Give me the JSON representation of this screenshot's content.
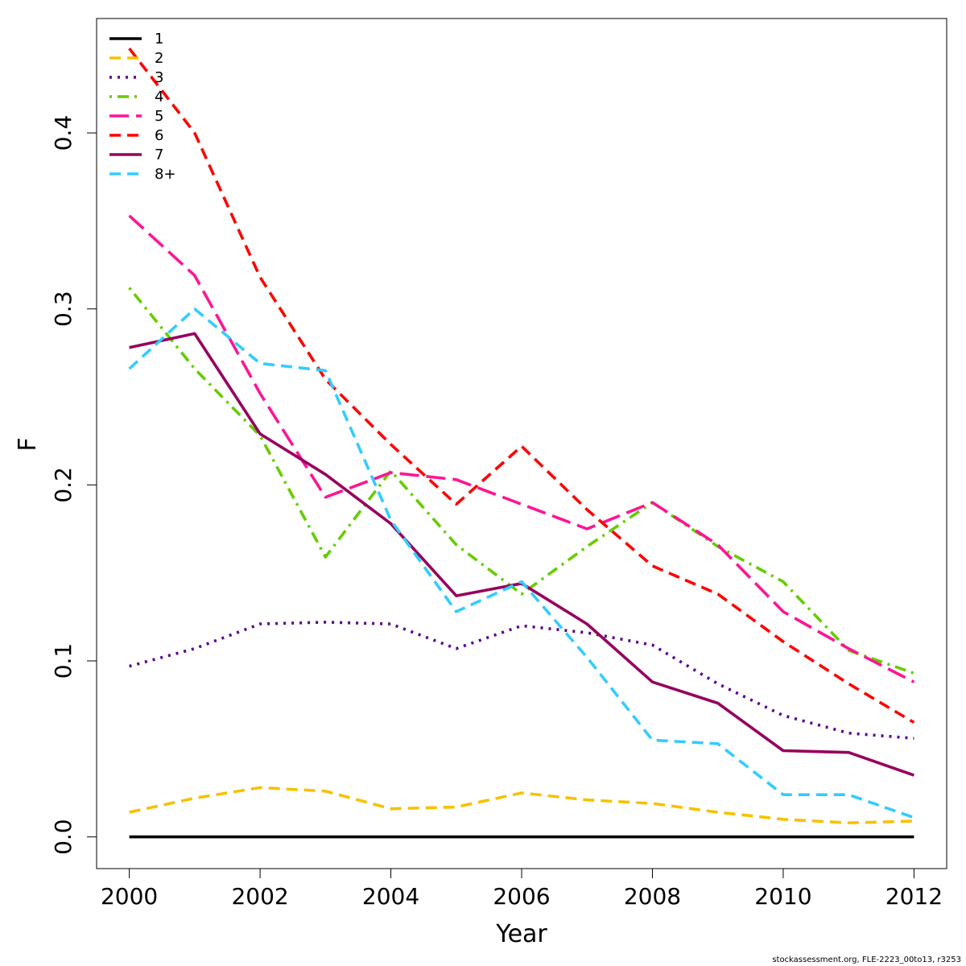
{
  "chart_data": {
    "type": "line",
    "xlabel": "Year",
    "ylabel": "F",
    "xlim": [
      1999.5,
      2012.5
    ],
    "ylim": [
      -0.018,
      0.465
    ],
    "x_ticks": [
      2000,
      2002,
      2004,
      2006,
      2008,
      2010,
      2012
    ],
    "y_ticks": [
      0.0,
      0.1,
      0.2,
      0.3,
      0.4
    ],
    "y_tick_labels": [
      "0.0",
      "0.1",
      "0.2",
      "0.3",
      "0.4"
    ],
    "legend_position": "top-left",
    "x": [
      2000,
      2001,
      2002,
      2003,
      2004,
      2005,
      2006,
      2007,
      2008,
      2009,
      2010,
      2011,
      2012
    ],
    "series": [
      {
        "name": "1",
        "color": "#000000",
        "dash": "solid",
        "values": [
          0.0,
          0.0,
          0.0,
          0.0,
          0.0,
          0.0,
          0.0,
          0.0,
          0.0,
          0.0,
          0.0,
          0.0,
          0.0
        ]
      },
      {
        "name": "2",
        "color": "#F5C200",
        "dash": "dashed",
        "values": [
          0.014,
          0.022,
          0.028,
          0.026,
          0.016,
          0.017,
          0.025,
          0.021,
          0.019,
          0.014,
          0.01,
          0.008,
          0.009
        ]
      },
      {
        "name": "3",
        "color": "#5B0092",
        "dash": "dotted",
        "values": [
          0.097,
          0.107,
          0.121,
          0.122,
          0.121,
          0.107,
          0.12,
          0.116,
          0.109,
          0.087,
          0.069,
          0.059,
          0.056
        ]
      },
      {
        "name": "4",
        "color": "#66CC00",
        "dash": "dotdash",
        "values": [
          0.312,
          0.266,
          0.228,
          0.159,
          0.208,
          0.166,
          0.138,
          0.165,
          0.19,
          0.165,
          0.145,
          0.106,
          0.093
        ]
      },
      {
        "name": "5",
        "color": "#FF1493",
        "dash": "longdash",
        "values": [
          0.353,
          0.319,
          0.252,
          0.193,
          0.207,
          0.203,
          0.189,
          0.175,
          0.19,
          0.166,
          0.128,
          0.107,
          0.088
        ]
      },
      {
        "name": "6",
        "color": "#FF0000",
        "dash": "dashed",
        "values": [
          0.448,
          0.4,
          0.318,
          0.26,
          0.223,
          0.189,
          0.222,
          0.186,
          0.154,
          0.138,
          0.111,
          0.087,
          0.065
        ]
      },
      {
        "name": "7",
        "color": "#96005E",
        "dash": "solid",
        "values": [
          0.278,
          0.286,
          0.229,
          0.206,
          0.178,
          0.137,
          0.144,
          0.121,
          0.088,
          0.076,
          0.049,
          0.048,
          0.035
        ]
      },
      {
        "name": "8+",
        "color": "#33CCFF",
        "dash": "dashed",
        "values": [
          0.266,
          0.3,
          0.269,
          0.265,
          0.18,
          0.128,
          0.145,
          0.102,
          0.055,
          0.053,
          0.024,
          0.024,
          0.011
        ]
      }
    ]
  },
  "footnote": "stockassessment.org, FLE-2223_00to13, r3253"
}
